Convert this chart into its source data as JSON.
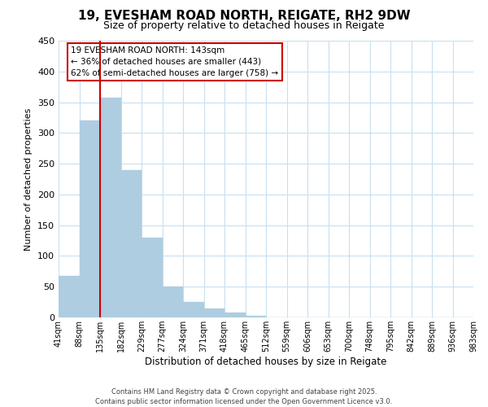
{
  "title": "19, EVESHAM ROAD NORTH, REIGATE, RH2 9DW",
  "subtitle": "Size of property relative to detached houses in Reigate",
  "xlabel": "Distribution of detached houses by size in Reigate",
  "ylabel": "Number of detached properties",
  "bar_values": [
    67,
    320,
    357,
    240,
    130,
    50,
    25,
    14,
    8,
    3,
    0,
    0,
    0,
    0,
    0,
    0,
    0,
    0,
    0,
    0
  ],
  "bin_labels": [
    "41sqm",
    "88sqm",
    "135sqm",
    "182sqm",
    "229sqm",
    "277sqm",
    "324sqm",
    "371sqm",
    "418sqm",
    "465sqm",
    "512sqm",
    "559sqm",
    "606sqm",
    "653sqm",
    "700sqm",
    "748sqm",
    "795sqm",
    "842sqm",
    "889sqm",
    "936sqm",
    "983sqm"
  ],
  "bar_color": "#aecde0",
  "bar_edge_color": "#aecde0",
  "vline_x": 2.0,
  "vline_color": "#cc0000",
  "ylim": [
    0,
    450
  ],
  "yticks": [
    0,
    50,
    100,
    150,
    200,
    250,
    300,
    350,
    400,
    450
  ],
  "annotation_text": "19 EVESHAM ROAD NORTH: 143sqm\n← 36% of detached houses are smaller (443)\n62% of semi-detached houses are larger (758) →",
  "annotation_box_color": "#ffffff",
  "annotation_box_edge": "#cc0000",
  "footer_line1": "Contains HM Land Registry data © Crown copyright and database right 2025.",
  "footer_line2": "Contains public sector information licensed under the Open Government Licence v3.0.",
  "background_color": "#ffffff",
  "grid_color": "#c8dff0",
  "title_fontsize": 11,
  "subtitle_fontsize": 9,
  "ylabel_text": "Number of detached properties"
}
